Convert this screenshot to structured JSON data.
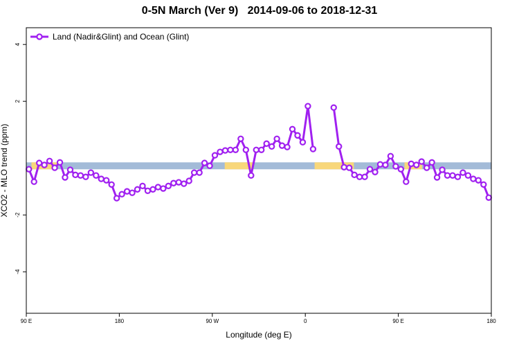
{
  "chart_data": {
    "type": "line",
    "title": "0-5N March (Ver 9)   2014-09-06 to 2018-12-31",
    "xlabel": "Longitude (deg E)",
    "ylabel": "XCO2 - MLO trend (ppm)",
    "xlim": [
      90,
      540
    ],
    "ylim": [
      -5.46,
      4.59
    ],
    "xticks": [
      {
        "value": 90,
        "label": "90 E"
      },
      {
        "value": 180,
        "label": "180"
      },
      {
        "value": 270,
        "label": "90 W"
      },
      {
        "value": 360,
        "label": "0"
      },
      {
        "value": 450,
        "label": "90 E"
      },
      {
        "value": 540,
        "label": "180"
      }
    ],
    "yticks": [
      -4,
      -2,
      2,
      4
    ],
    "legend": "top-left",
    "band": {
      "y": -0.27,
      "segments": [
        {
          "x": [
            90,
            540
          ],
          "color": "#a3bbd8"
        },
        {
          "x": [
            95,
            120
          ],
          "color": "#f8d77a"
        },
        {
          "x": [
            282,
            309
          ],
          "color": "#f8d77a"
        },
        {
          "x": [
            369,
            407
          ],
          "color": "#f8d77a"
        },
        {
          "x": [
            456,
            473
          ],
          "color": "#f8d77a"
        }
      ]
    },
    "x": [
      92.5,
      97.5,
      102.5,
      107.5,
      112.5,
      117.5,
      122.5,
      127.5,
      132.5,
      137.5,
      142.5,
      147.5,
      152.5,
      157.5,
      162.5,
      167.5,
      172.5,
      177.5,
      182.5,
      187.5,
      192.5,
      197.5,
      202.5,
      207.5,
      212.5,
      217.5,
      222.5,
      227.5,
      232.5,
      237.5,
      242.5,
      247.5,
      252.5,
      257.5,
      262.5,
      267.5,
      272.5,
      277.5,
      282.5,
      287.5,
      292.5,
      297.5,
      302.5,
      307.5,
      312.5,
      317.5,
      322.5,
      327.5,
      332.5,
      337.5,
      342.5,
      347.5,
      352.5,
      357.5,
      362.5,
      367.5,
      372.5,
      377.5,
      382.5,
      387.5,
      392.5,
      397.5,
      402.5,
      407.5,
      412.5,
      417.5,
      422.5,
      427.5,
      432.5,
      437.5,
      442.5,
      447.5,
      452.5,
      457.5,
      462.5,
      467.5,
      472.5,
      477.5,
      482.5,
      487.5,
      492.5,
      497.5,
      502.5,
      507.5,
      512.5,
      517.5,
      522.5,
      527.5,
      532.5,
      537.5
    ],
    "series": [
      {
        "name": "Land (Nadir&Glint) and Ocean (Glint)",
        "color": "#a020f0",
        "values": [
          -0.39,
          -0.83,
          -0.17,
          -0.24,
          -0.1,
          -0.34,
          -0.15,
          -0.68,
          -0.41,
          -0.59,
          -0.61,
          -0.66,
          -0.51,
          -0.61,
          -0.73,
          -0.78,
          -0.93,
          -1.41,
          -1.27,
          -1.17,
          -1.22,
          -1.1,
          -0.98,
          -1.15,
          -1.1,
          -1.02,
          -1.07,
          -0.98,
          -0.88,
          -0.85,
          -0.9,
          -0.8,
          -0.51,
          -0.51,
          -0.17,
          -0.27,
          0.1,
          0.22,
          0.27,
          0.29,
          0.29,
          0.68,
          0.29,
          -0.61,
          0.29,
          0.29,
          0.51,
          0.41,
          0.68,
          0.44,
          0.39,
          1.02,
          0.8,
          0.56,
          1.83,
          0.32,
          null,
          null,
          null,
          1.78,
          0.41,
          -0.32,
          -0.34,
          -0.59,
          -0.66,
          -0.66,
          -0.39,
          -0.49,
          -0.22,
          -0.24,
          0.07,
          -0.29,
          -0.39,
          -0.83,
          -0.2,
          -0.24,
          -0.12,
          -0.34,
          -0.15,
          -0.68,
          -0.41,
          -0.61,
          -0.61,
          -0.66,
          -0.51,
          -0.61,
          -0.73,
          -0.78,
          -0.93,
          -1.39
        ]
      }
    ]
  }
}
